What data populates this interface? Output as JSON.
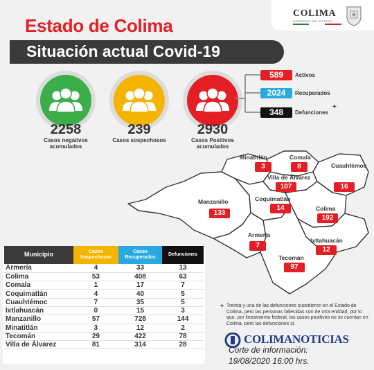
{
  "header": {
    "title": "Estado de Colima",
    "subtitle": "Situación actual Covid-19"
  },
  "logo": {
    "name": "COLIMA",
    "sub": "GOBIERNO DEL ESTADO"
  },
  "summary": [
    {
      "value": "2258",
      "label1": "Casos negativos",
      "label2": "acumulados",
      "color": "#3bae49"
    },
    {
      "value": "239",
      "label1": "Casos sospechosos",
      "label2": "",
      "color": "#f4b400"
    },
    {
      "value": "2930",
      "label1": "Casos Positivos",
      "label2": "acumulados",
      "color": "#e31e24"
    }
  ],
  "positives_breakdown": [
    {
      "value": "589",
      "label": "Activos",
      "color": "#e31e24"
    },
    {
      "value": "2024",
      "label": "Recuperados",
      "color": "#29a9e1"
    },
    {
      "value": "348",
      "label": "Defunciones",
      "color": "#111111"
    }
  ],
  "positives_plus": "+",
  "table": {
    "headers": {
      "municipio": "Municipio",
      "sospechosos1": "Casos",
      "sospechosos2": "Sospechosos",
      "recuperados1": "Casos",
      "recuperados2": "Recuperados",
      "defunciones": "Defunciones"
    },
    "rows": [
      {
        "m": "Armería",
        "s": "4",
        "r": "33",
        "d": "13"
      },
      {
        "m": "Colima",
        "s": "53",
        "r": "408",
        "d": "63"
      },
      {
        "m": "Comala",
        "s": "1",
        "r": "17",
        "d": "7"
      },
      {
        "m": "Coquimatlán",
        "s": "4",
        "r": "40",
        "d": "5"
      },
      {
        "m": "Cuauhtémoc",
        "s": "7",
        "r": "35",
        "d": "5"
      },
      {
        "m": "Ixtlahuacán",
        "s": "0",
        "r": "15",
        "d": "3"
      },
      {
        "m": "Manzanillo",
        "s": "57",
        "r": "728",
        "d": "144"
      },
      {
        "m": "Minatitlán",
        "s": "3",
        "r": "12",
        "d": "2"
      },
      {
        "m": "Tecomán",
        "s": "29",
        "r": "422",
        "d": "78"
      },
      {
        "m": "Villa de Álvarez",
        "s": "81",
        "r": "314",
        "d": "28"
      }
    ]
  },
  "map": {
    "municipalities": [
      {
        "name": "Minatitlán",
        "value": "3"
      },
      {
        "name": "Comala",
        "value": "8"
      },
      {
        "name": "Villa de Álvarez",
        "value": "107"
      },
      {
        "name": "Cuauhtémoc",
        "value": "16"
      },
      {
        "name": "Manzanillo",
        "value": "133"
      },
      {
        "name": "Coquimatlán",
        "value": "14"
      },
      {
        "name": "Colima",
        "value": "192"
      },
      {
        "name": "Armería",
        "value": "7"
      },
      {
        "name": "Ixtlahuacán",
        "value": "12"
      },
      {
        "name": "Tecomán",
        "value": "97"
      }
    ]
  },
  "note": {
    "plus": "+",
    "text": "Treinta y una de las defunciones sucedieron en el Estado de Colima, pero las personas fallecidas son de otra entidad, por lo que, por lineamiento federal, los casos positivos no se cuentan en Colima, pero las defunciones sí."
  },
  "brand": "COLIMANOTICIAS",
  "corte": {
    "line1": "Corte de información:",
    "line2": "19/08/2020 16:00 hrs."
  }
}
